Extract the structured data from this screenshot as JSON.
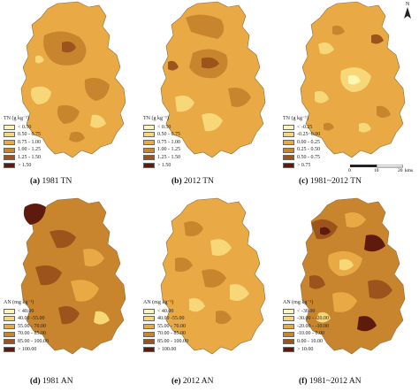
{
  "panels": [
    {
      "letter": "(a)",
      "caption": "1981 TN",
      "legend_title": "TN (g kg⁻¹)",
      "classes": [
        "< 0.50",
        "0.50 - 0.75",
        "0.75 - 1.00",
        "1.00 - 1.25",
        "1.25 - 1.50",
        "> 1.50"
      ]
    },
    {
      "letter": "(b)",
      "caption": "2012 TN",
      "legend_title": "TN (g kg⁻¹)",
      "classes": [
        "< 0.50",
        "0.50 - 0.75",
        "0.75 - 1.00",
        "1.00 - 1.25",
        "1.25 - 1.50",
        "> 1.50"
      ]
    },
    {
      "letter": "(c)",
      "caption": "1981~2012 TN",
      "legend_title": "TN (g kg⁻¹)",
      "classes": [
        "< -0.25",
        "-0.25~0.00",
        "0.00 - 0.25",
        "0.25 - 0.50",
        "0.50 - 0.75",
        "> 0.75"
      ]
    },
    {
      "letter": "(d)",
      "caption": "1981 AN",
      "legend_title": "AN (mg kg⁻¹)",
      "classes": [
        "< 40.00",
        "40.00 -55.00",
        "55.00 - 70.00",
        "70.00 - 85.00",
        "85.00 - 100.00",
        "> 100.00"
      ]
    },
    {
      "letter": "(e)",
      "caption": "2012 AN",
      "legend_title": "AN (mg kg⁻¹)",
      "classes": [
        "< 40.00",
        "40.00 -55.00",
        "55.00 - 70.00",
        "70.00 - 85.00",
        "85.00 - 100.00",
        "> 100.00"
      ]
    },
    {
      "letter": "(f)",
      "caption": "1981~2012 AN",
      "legend_title": "AN (mg kg⁻¹)",
      "classes": [
        "< -30.00",
        "-30.00 - -20.00",
        "-20.00 - -10.00",
        "-10.00 - 0.00",
        "0.00 - 10.00",
        "> 10.00"
      ]
    }
  ],
  "colors": {
    "classes": [
      "#fdf6b0",
      "#f7d777",
      "#e9aa45",
      "#c9852e",
      "#9c531c",
      "#5e1a0c"
    ]
  },
  "north_label": "N",
  "scale": {
    "ticks": [
      "0",
      "10",
      "20"
    ],
    "unit": "kms"
  }
}
